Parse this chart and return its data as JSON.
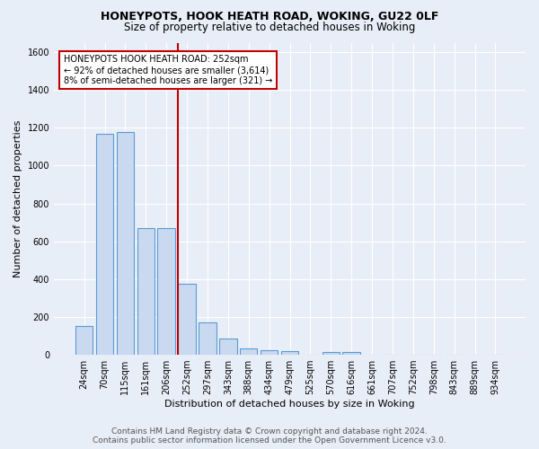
{
  "title": "HONEYPOTS, HOOK HEATH ROAD, WOKING, GU22 0LF",
  "subtitle": "Size of property relative to detached houses in Woking",
  "xlabel": "Distribution of detached houses by size in Woking",
  "ylabel": "Number of detached properties",
  "categories": [
    "24sqm",
    "70sqm",
    "115sqm",
    "161sqm",
    "206sqm",
    "252sqm",
    "297sqm",
    "343sqm",
    "388sqm",
    "434sqm",
    "479sqm",
    "525sqm",
    "570sqm",
    "616sqm",
    "661sqm",
    "707sqm",
    "752sqm",
    "798sqm",
    "843sqm",
    "889sqm",
    "934sqm"
  ],
  "values": [
    150,
    1170,
    1180,
    670,
    670,
    375,
    170,
    88,
    35,
    25,
    20,
    0,
    15,
    15,
    0,
    0,
    0,
    0,
    0,
    0,
    0
  ],
  "bar_color": "#c9d9f0",
  "bar_edge_color": "#5b9bd5",
  "highlight_index": 5,
  "highlight_color": "#c00000",
  "annotation_title": "HONEYPOTS HOOK HEATH ROAD: 252sqm",
  "annotation_line1": "← 92% of detached houses are smaller (3,614)",
  "annotation_line2": "8% of semi-detached houses are larger (321) →",
  "annotation_box_color": "#ffffff",
  "annotation_box_edge": "#c00000",
  "ylim": [
    0,
    1650
  ],
  "yticks": [
    0,
    200,
    400,
    600,
    800,
    1000,
    1200,
    1400,
    1600
  ],
  "footer_line1": "Contains HM Land Registry data © Crown copyright and database right 2024.",
  "footer_line2": "Contains public sector information licensed under the Open Government Licence v3.0.",
  "background_color": "#e8eef7",
  "grid_color": "#ffffff",
  "title_fontsize": 9,
  "subtitle_fontsize": 8.5,
  "axis_label_fontsize": 8,
  "tick_fontsize": 7,
  "footer_fontsize": 6.5,
  "annotation_fontsize": 7
}
